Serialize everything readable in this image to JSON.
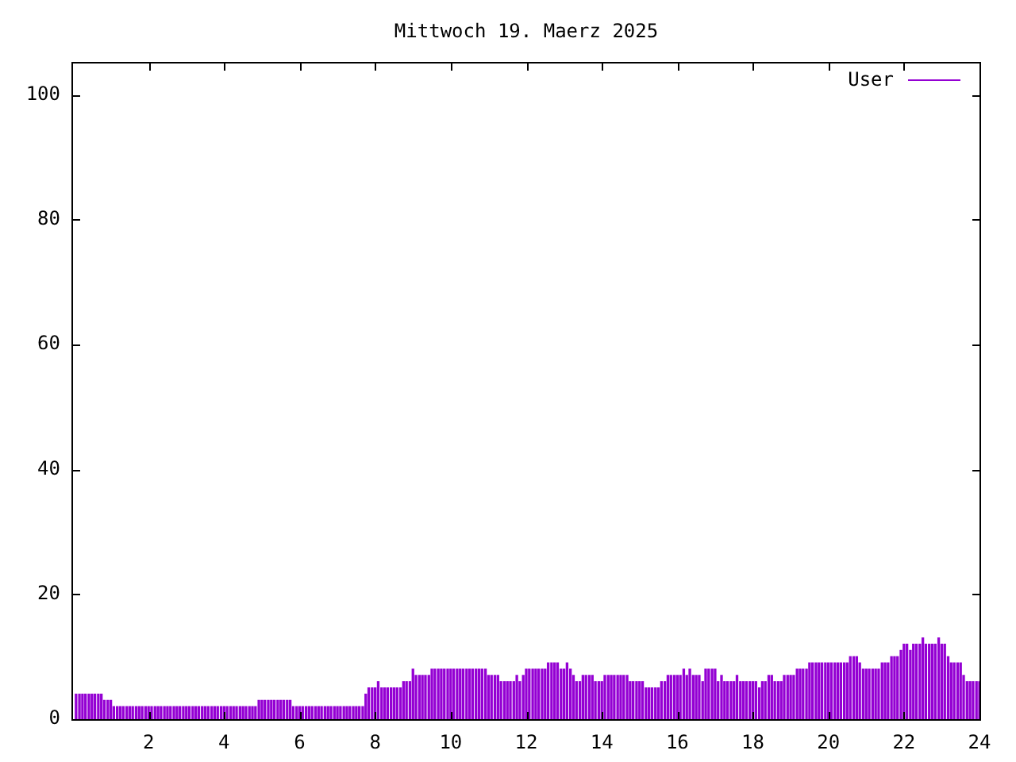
{
  "chart_data": {
    "type": "bar",
    "title": "Mittwoch 19. Maerz 2025",
    "x": [
      0.08,
      0.17,
      0.25,
      0.33,
      0.42,
      0.5,
      0.58,
      0.67,
      0.75,
      0.83,
      0.92,
      1,
      1.08,
      1.17,
      1.25,
      1.33,
      1.42,
      1.5,
      1.58,
      1.67,
      1.75,
      1.83,
      1.92,
      2,
      2.08,
      2.17,
      2.25,
      2.33,
      2.42,
      2.5,
      2.58,
      2.67,
      2.75,
      2.83,
      2.92,
      3,
      3.08,
      3.17,
      3.25,
      3.33,
      3.42,
      3.5,
      3.58,
      3.67,
      3.75,
      3.83,
      3.92,
      4,
      4.08,
      4.17,
      4.25,
      4.33,
      4.42,
      4.5,
      4.58,
      4.67,
      4.75,
      4.83,
      4.92,
      5,
      5.08,
      5.17,
      5.25,
      5.33,
      5.42,
      5.5,
      5.58,
      5.67,
      5.75,
      5.83,
      5.92,
      6,
      6.08,
      6.17,
      6.25,
      6.33,
      6.42,
      6.5,
      6.58,
      6.67,
      6.75,
      6.83,
      6.92,
      7,
      7.08,
      7.17,
      7.25,
      7.33,
      7.42,
      7.5,
      7.58,
      7.67,
      7.75,
      7.83,
      7.92,
      8,
      8.08,
      8.17,
      8.25,
      8.33,
      8.42,
      8.5,
      8.58,
      8.67,
      8.75,
      8.83,
      8.92,
      9,
      9.08,
      9.17,
      9.25,
      9.33,
      9.42,
      9.5,
      9.58,
      9.67,
      9.75,
      9.83,
      9.92,
      10,
      10.08,
      10.17,
      10.25,
      10.33,
      10.42,
      10.5,
      10.58,
      10.67,
      10.75,
      10.83,
      10.92,
      11,
      11.08,
      11.17,
      11.25,
      11.33,
      11.42,
      11.5,
      11.58,
      11.67,
      11.75,
      11.83,
      11.92,
      12,
      12.08,
      12.17,
      12.25,
      12.33,
      12.42,
      12.5,
      12.58,
      12.67,
      12.75,
      12.83,
      12.92,
      13,
      13.08,
      13.17,
      13.25,
      13.33,
      13.42,
      13.5,
      13.58,
      13.67,
      13.75,
      13.83,
      13.92,
      14,
      14.08,
      14.17,
      14.25,
      14.33,
      14.42,
      14.5,
      14.58,
      14.67,
      14.75,
      14.83,
      14.92,
      15,
      15.08,
      15.17,
      15.25,
      15.33,
      15.42,
      15.5,
      15.58,
      15.67,
      15.75,
      15.83,
      15.92,
      16,
      16.08,
      16.17,
      16.25,
      16.33,
      16.42,
      16.5,
      16.58,
      16.67,
      16.75,
      16.83,
      16.92,
      17,
      17.08,
      17.17,
      17.25,
      17.33,
      17.42,
      17.5,
      17.58,
      17.67,
      17.75,
      17.83,
      17.92,
      18,
      18.08,
      18.17,
      18.25,
      18.33,
      18.42,
      18.5,
      18.58,
      18.67,
      18.75,
      18.83,
      18.92,
      19,
      19.08,
      19.17,
      19.25,
      19.33,
      19.42,
      19.5,
      19.58,
      19.67,
      19.75,
      19.83,
      19.92,
      20,
      20.08,
      20.17,
      20.25,
      20.33,
      20.42,
      20.5,
      20.58,
      20.67,
      20.75,
      20.83,
      20.92,
      21,
      21.08,
      21.17,
      21.25,
      21.33,
      21.42,
      21.5,
      21.58,
      21.67,
      21.75,
      21.83,
      21.92,
      22,
      22.08,
      22.17,
      22.25,
      22.33,
      22.42,
      22.5,
      22.58,
      22.67,
      22.75,
      22.83,
      22.92,
      23,
      23.08,
      23.17,
      23.25,
      23.33,
      23.42,
      23.5,
      23.58,
      23.67,
      23.75,
      23.83,
      23.92,
      24
    ],
    "series": [
      {
        "name": "User",
        "color": "#9400d3",
        "values": [
          4,
          4,
          4,
          4,
          4,
          4,
          4,
          4,
          4,
          3,
          3,
          3,
          2,
          2,
          2,
          2,
          2,
          2,
          2,
          2,
          2,
          2,
          2,
          2,
          2,
          2,
          2,
          2,
          2,
          2,
          2,
          2,
          2,
          2,
          2,
          2,
          2,
          2,
          2,
          2,
          2,
          2,
          2,
          2,
          2,
          2,
          2,
          2,
          2,
          2,
          2,
          2,
          2,
          2,
          2,
          2,
          2,
          2,
          3,
          3,
          3,
          3,
          3,
          3,
          3,
          3,
          3,
          3,
          3,
          2,
          2,
          2,
          2,
          2,
          2,
          2,
          2,
          2,
          2,
          2,
          2,
          2,
          2,
          2,
          2,
          2,
          2,
          2,
          2,
          2,
          2,
          2,
          4,
          5,
          5,
          5,
          6,
          5,
          5,
          5,
          5,
          5,
          5,
          5,
          6,
          6,
          6,
          8,
          7,
          7,
          7,
          7,
          7,
          8,
          8,
          8,
          8,
          8,
          8,
          8,
          8,
          8,
          8,
          8,
          8,
          8,
          8,
          8,
          8,
          8,
          8,
          7,
          7,
          7,
          7,
          6,
          6,
          6,
          6,
          6,
          7,
          6,
          7,
          8,
          8,
          8,
          8,
          8,
          8,
          8,
          9,
          9,
          9,
          9,
          8,
          8,
          9,
          8,
          7,
          6,
          6,
          7,
          7,
          7,
          7,
          6,
          6,
          6,
          7,
          7,
          7,
          7,
          7,
          7,
          7,
          7,
          6,
          6,
          6,
          6,
          6,
          5,
          5,
          5,
          5,
          5,
          6,
          6,
          7,
          7,
          7,
          7,
          7,
          8,
          7,
          8,
          7,
          7,
          7,
          6,
          8,
          8,
          8,
          8,
          6,
          7,
          6,
          6,
          6,
          6,
          7,
          6,
          6,
          6,
          6,
          6,
          6,
          5,
          6,
          6,
          7,
          7,
          6,
          6,
          6,
          7,
          7,
          7,
          7,
          8,
          8,
          8,
          8,
          9,
          9,
          9,
          9,
          9,
          9,
          9,
          9,
          9,
          9,
          9,
          9,
          9,
          10,
          10,
          10,
          9,
          8,
          8,
          8,
          8,
          8,
          8,
          9,
          9,
          9,
          10,
          10,
          10,
          11,
          12,
          12,
          11,
          12,
          12,
          12,
          13,
          12,
          12,
          12,
          12,
          13,
          12,
          12,
          10,
          9,
          9,
          9,
          9,
          7,
          6,
          6,
          6,
          6,
          6
        ]
      }
    ],
    "xlim": [
      0,
      24
    ],
    "xticks": [
      2,
      4,
      6,
      8,
      10,
      12,
      14,
      16,
      18,
      20,
      22,
      24
    ],
    "ylim": [
      0,
      105
    ],
    "yticks": [
      0,
      20,
      40,
      60,
      80,
      100
    ],
    "legend": "top right"
  }
}
